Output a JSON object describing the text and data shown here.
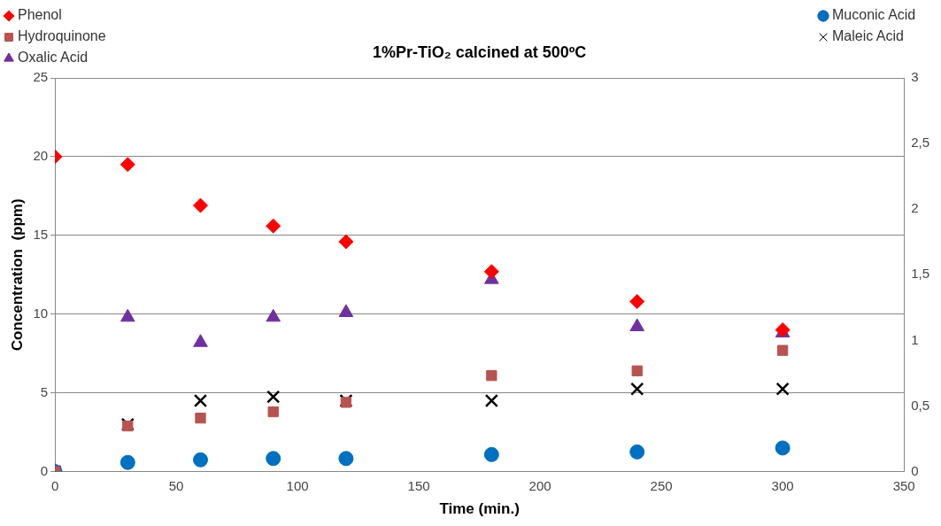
{
  "chart_data": {
    "type": "scatter",
    "title": "1%Pr-TiO₂ calcined at 500ºC",
    "xlabel": "Time (min.)",
    "ylabel": "Concentration  (ppm)",
    "x": [
      0,
      30,
      60,
      90,
      120,
      180,
      240,
      300
    ],
    "series": [
      {
        "name": "Phenol",
        "color": "#ff0000",
        "marker": "diamond",
        "values": [
          20,
          19.5,
          16.9,
          15.6,
          14.6,
          12.7,
          10.8,
          9
        ]
      },
      {
        "name": "Hydroquinone",
        "color": "#b85450",
        "marker": "square",
        "values": [
          0,
          2.9,
          3.4,
          3.8,
          4.4,
          6.1,
          6.4,
          7.7
        ]
      },
      {
        "name": "Oxalic Acid",
        "color": "#7030a0",
        "marker": "triangle",
        "values": [
          0,
          9.8,
          8.2,
          9.8,
          10.1,
          12.2,
          9.2,
          8.8
        ]
      },
      {
        "name": "Muconic Acid",
        "color": "#0070c0",
        "marker": "circle",
        "axis": "y2",
        "values": [
          0,
          0.07,
          0.09,
          0.1,
          0.1,
          0.13,
          0.15,
          0.18
        ]
      },
      {
        "name": "Maleic Acid",
        "color": "#000000",
        "marker": "cross",
        "axis": "y2",
        "values": [
          0,
          0.36,
          0.54,
          0.57,
          0.54,
          0.54,
          0.63,
          0.63
        ]
      }
    ],
    "xlim": [
      0,
      350
    ],
    "xticks": [
      0,
      50,
      100,
      150,
      200,
      250,
      300,
      350
    ],
    "ylim": [
      0,
      25
    ],
    "yticks": [
      0,
      5,
      10,
      15,
      20,
      25
    ],
    "y2lim": [
      0,
      3
    ],
    "y2ticks": [
      0,
      {
        "value": 0.5,
        "label": "0,5"
      },
      1,
      {
        "value": 1.5,
        "label": "1,5"
      },
      2,
      {
        "value": 2.5,
        "label": "2,5"
      },
      3
    ],
    "grid": "y",
    "legend": "top"
  }
}
